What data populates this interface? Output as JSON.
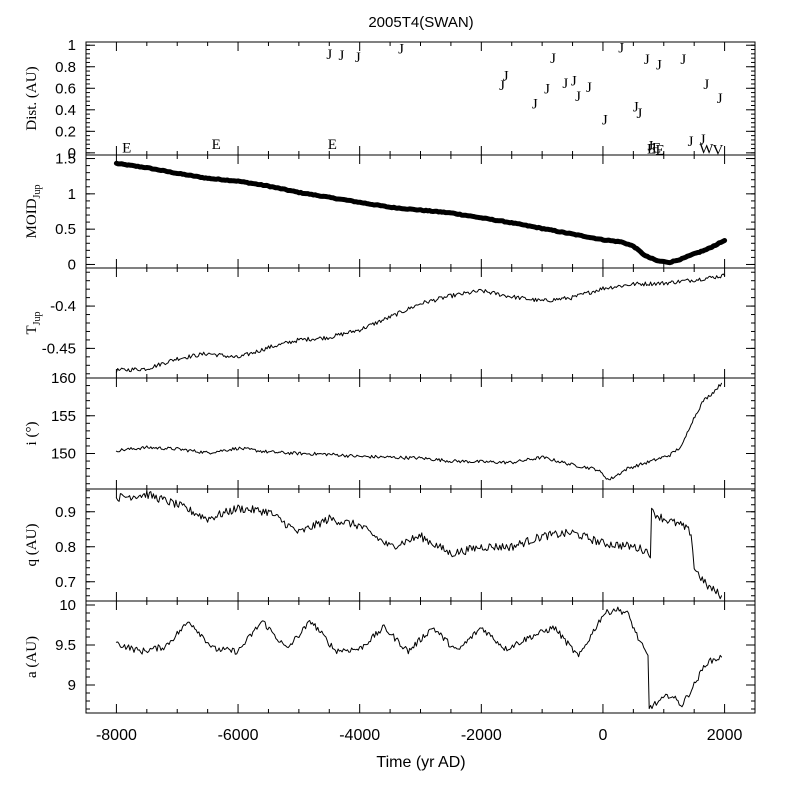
{
  "chart_data": {
    "title": "2005T4(SWAN)",
    "type": "line",
    "xlabel": "Time (yr AD)",
    "xlim": [
      -8500,
      2500
    ],
    "xticks": [
      -8000,
      -6000,
      -4000,
      -2000,
      0,
      2000
    ],
    "xtick_labels": [
      "-8000",
      "-6000",
      "-4000",
      "-2000",
      "0",
      "2000"
    ],
    "panels": [
      {
        "id": "dist",
        "ylabel": "Dist. (AU)",
        "ylim": [
          -0.02,
          1.03
        ],
        "yticks": [
          0,
          0.2,
          0.4,
          0.6,
          0.8,
          1
        ],
        "ytick_labels": [
          "0",
          "0.2",
          "0.4",
          "0.6",
          "0.8",
          "1"
        ],
        "type": "scatter-letters",
        "encounters": [
          {
            "t": -7830,
            "d": 0.05,
            "label": "E"
          },
          {
            "t": -6360,
            "d": 0.08,
            "label": "E"
          },
          {
            "t": -4450,
            "d": 0.08,
            "label": "E"
          },
          {
            "t": -4500,
            "d": 0.92,
            "label": "J"
          },
          {
            "t": -4300,
            "d": 0.91,
            "label": "J"
          },
          {
            "t": -4030,
            "d": 0.89,
            "label": "J"
          },
          {
            "t": -3320,
            "d": 0.97,
            "label": "J"
          },
          {
            "t": -1660,
            "d": 0.63,
            "label": "J"
          },
          {
            "t": -1600,
            "d": 0.72,
            "label": "J"
          },
          {
            "t": -1120,
            "d": 0.46,
            "label": "J"
          },
          {
            "t": -920,
            "d": 0.6,
            "label": "J"
          },
          {
            "t": -820,
            "d": 0.88,
            "label": "J"
          },
          {
            "t": -620,
            "d": 0.65,
            "label": "J"
          },
          {
            "t": -480,
            "d": 0.67,
            "label": "J"
          },
          {
            "t": -410,
            "d": 0.53,
            "label": "J"
          },
          {
            "t": -230,
            "d": 0.61,
            "label": "J"
          },
          {
            "t": 30,
            "d": 0.31,
            "label": "J"
          },
          {
            "t": 300,
            "d": 0.98,
            "label": "J"
          },
          {
            "t": 540,
            "d": 0.43,
            "label": "J"
          },
          {
            "t": 600,
            "d": 0.37,
            "label": "J"
          },
          {
            "t": 720,
            "d": 0.87,
            "label": "J"
          },
          {
            "t": 780,
            "d": 0.07,
            "label": "J"
          },
          {
            "t": 800,
            "d": 0.04,
            "label": "E"
          },
          {
            "t": 880,
            "d": 0.05,
            "label": "E"
          },
          {
            "t": 920,
            "d": 0.82,
            "label": "J"
          },
          {
            "t": 940,
            "d": 0.03,
            "label": "E"
          },
          {
            "t": 1320,
            "d": 0.87,
            "label": "J"
          },
          {
            "t": 1440,
            "d": 0.11,
            "label": "J"
          },
          {
            "t": 1640,
            "d": 0.13,
            "label": "J"
          },
          {
            "t": 1700,
            "d": 0.64,
            "label": "J"
          },
          {
            "t": 1700,
            "d": 0.04,
            "label": "W"
          },
          {
            "t": 1920,
            "d": 0.51,
            "label": "J"
          },
          {
            "t": 1890,
            "d": 0.03,
            "label": "V"
          }
        ]
      },
      {
        "id": "moid",
        "ylabel": "MOID",
        "ylabel_sub": "Jup",
        "ylim": [
          -0.05,
          1.55
        ],
        "yticks": [
          0,
          0.5,
          1,
          1.5
        ],
        "ytick_labels": [
          "0",
          "0.5",
          "1",
          "1.5"
        ],
        "type": "thick-line",
        "x": [
          -8000,
          -7500,
          -7000,
          -6500,
          -6000,
          -5500,
          -5000,
          -4500,
          -4000,
          -3500,
          -3000,
          -2500,
          -2000,
          -1500,
          -1000,
          -500,
          0,
          300,
          500,
          700,
          900,
          1100,
          1300,
          1500,
          1700,
          2000
        ],
        "values": [
          1.43,
          1.37,
          1.29,
          1.22,
          1.18,
          1.11,
          1.02,
          0.95,
          0.88,
          0.81,
          0.77,
          0.73,
          0.66,
          0.59,
          0.51,
          0.43,
          0.35,
          0.32,
          0.26,
          0.12,
          0.05,
          0.03,
          0.08,
          0.15,
          0.21,
          0.34
        ]
      },
      {
        "id": "tjup",
        "ylabel": "T",
        "ylabel_sub": "Jup",
        "ylim": [
          -0.485,
          -0.355
        ],
        "yticks": [
          -0.45,
          -0.4
        ],
        "ytick_labels": [
          "-0.45",
          "-0.4"
        ],
        "type": "line",
        "x": [
          -8000,
          -7500,
          -7000,
          -6500,
          -6000,
          -5500,
          -5000,
          -4500,
          -4000,
          -3500,
          -3000,
          -2500,
          -2000,
          -1500,
          -1000,
          -500,
          0,
          500,
          1000,
          1500,
          2000
        ],
        "values": [
          -0.476,
          -0.474,
          -0.462,
          -0.456,
          -0.461,
          -0.449,
          -0.44,
          -0.437,
          -0.428,
          -0.413,
          -0.397,
          -0.388,
          -0.382,
          -0.389,
          -0.394,
          -0.39,
          -0.379,
          -0.374,
          -0.373,
          -0.369,
          -0.364
        ]
      },
      {
        "id": "incl",
        "ylabel": "i (°)",
        "ylim": [
          145.3,
          160
        ],
        "yticks": [
          150,
          155,
          160
        ],
        "ytick_labels": [
          "150",
          "155",
          "160"
        ],
        "type": "line",
        "x": [
          -8000,
          -7500,
          -7000,
          -6500,
          -6000,
          -5500,
          -5000,
          -4500,
          -4000,
          -3500,
          -3000,
          -2500,
          -2000,
          -1500,
          -1000,
          -500,
          -100,
          100,
          400,
          800,
          1100,
          1300,
          1450,
          1550,
          1650,
          1800,
          1950
        ],
        "values": [
          150.4,
          150.8,
          150.6,
          150.1,
          150.7,
          150.2,
          150.0,
          149.9,
          149.6,
          149.5,
          149.4,
          149.0,
          148.9,
          148.8,
          149.5,
          148.5,
          147.9,
          146.5,
          148.0,
          149.0,
          149.8,
          151.0,
          154.0,
          155.5,
          157.0,
          158.0,
          159.3
        ]
      },
      {
        "id": "q",
        "ylabel": "q (AU)",
        "ylim": [
          0.645,
          0.965
        ],
        "yticks": [
          0.7,
          0.8,
          0.9
        ],
        "ytick_labels": [
          "0.7",
          "0.8",
          "0.9"
        ],
        "type": "line",
        "x": [
          -8000,
          -7500,
          -7000,
          -6500,
          -6000,
          -5500,
          -5000,
          -4500,
          -4000,
          -3500,
          -3000,
          -2500,
          -2000,
          -1500,
          -1000,
          -500,
          0,
          500,
          700,
          780,
          800,
          1000,
          1300,
          1450,
          1500,
          1700,
          1950
        ],
        "values": [
          0.94,
          0.95,
          0.92,
          0.88,
          0.91,
          0.9,
          0.84,
          0.88,
          0.86,
          0.8,
          0.83,
          0.78,
          0.8,
          0.8,
          0.83,
          0.84,
          0.81,
          0.8,
          0.79,
          0.78,
          0.9,
          0.88,
          0.86,
          0.84,
          0.74,
          0.69,
          0.66
        ]
      },
      {
        "id": "a",
        "ylabel": "a (AU)",
        "ylim": [
          8.65,
          10.05
        ],
        "yticks": [
          9,
          9.5,
          10
        ],
        "ytick_labels": [
          "9",
          "9.5",
          "10"
        ],
        "type": "line",
        "x": [
          -8000,
          -7600,
          -7200,
          -6800,
          -6400,
          -6000,
          -5600,
          -5200,
          -4800,
          -4400,
          -4000,
          -3600,
          -3200,
          -2800,
          -2400,
          -2000,
          -1600,
          -1200,
          -800,
          -400,
          0,
          200,
          400,
          600,
          740,
          760,
          900,
          1100,
          1300,
          1500,
          1700,
          1950
        ],
        "values": [
          9.52,
          9.42,
          9.48,
          9.8,
          9.45,
          9.42,
          9.8,
          9.45,
          9.8,
          9.43,
          9.45,
          9.72,
          9.42,
          9.72,
          9.42,
          9.72,
          9.45,
          9.6,
          9.72,
          9.35,
          9.88,
          9.95,
          9.9,
          9.55,
          9.35,
          8.72,
          8.78,
          8.88,
          8.75,
          9.0,
          9.28,
          9.35
        ]
      }
    ]
  }
}
